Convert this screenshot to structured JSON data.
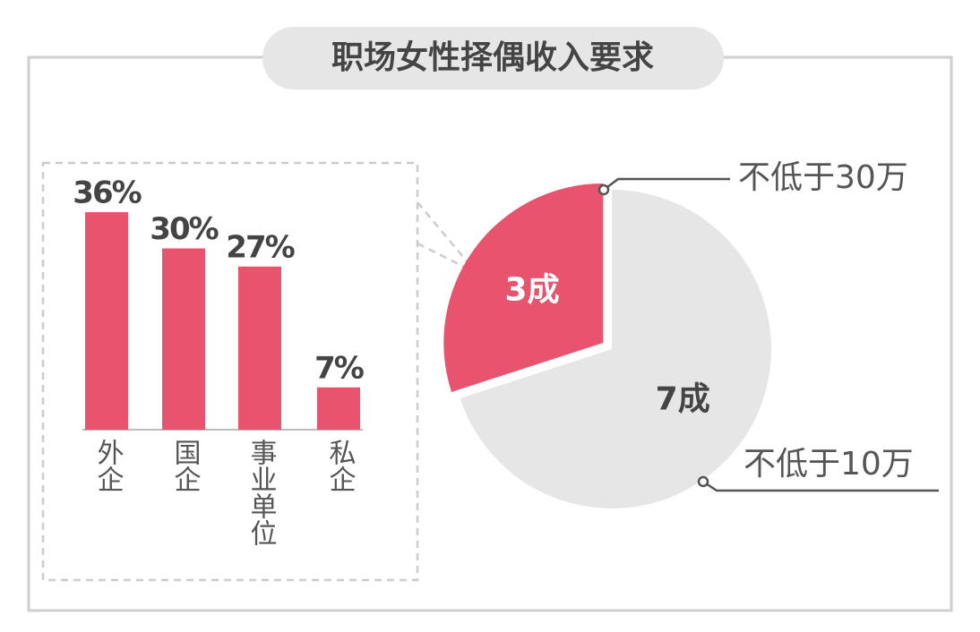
{
  "title": "职场女性择偶收入要求",
  "chart_data": [
    {
      "type": "bar",
      "categories": [
        "外企",
        "国企",
        "事业单位",
        "私企"
      ],
      "values": [
        36,
        30,
        27,
        7
      ],
      "value_labels": [
        "36%",
        "30%",
        "27%",
        "7%"
      ],
      "color": "#e8546d"
    },
    {
      "type": "pie",
      "categories": [
        "不低于30万",
        "不低于10万"
      ],
      "values": [
        3,
        7
      ],
      "value_labels": [
        "3成",
        "7成"
      ],
      "colors": [
        "#e8546d",
        "#e6e6e6"
      ]
    }
  ]
}
